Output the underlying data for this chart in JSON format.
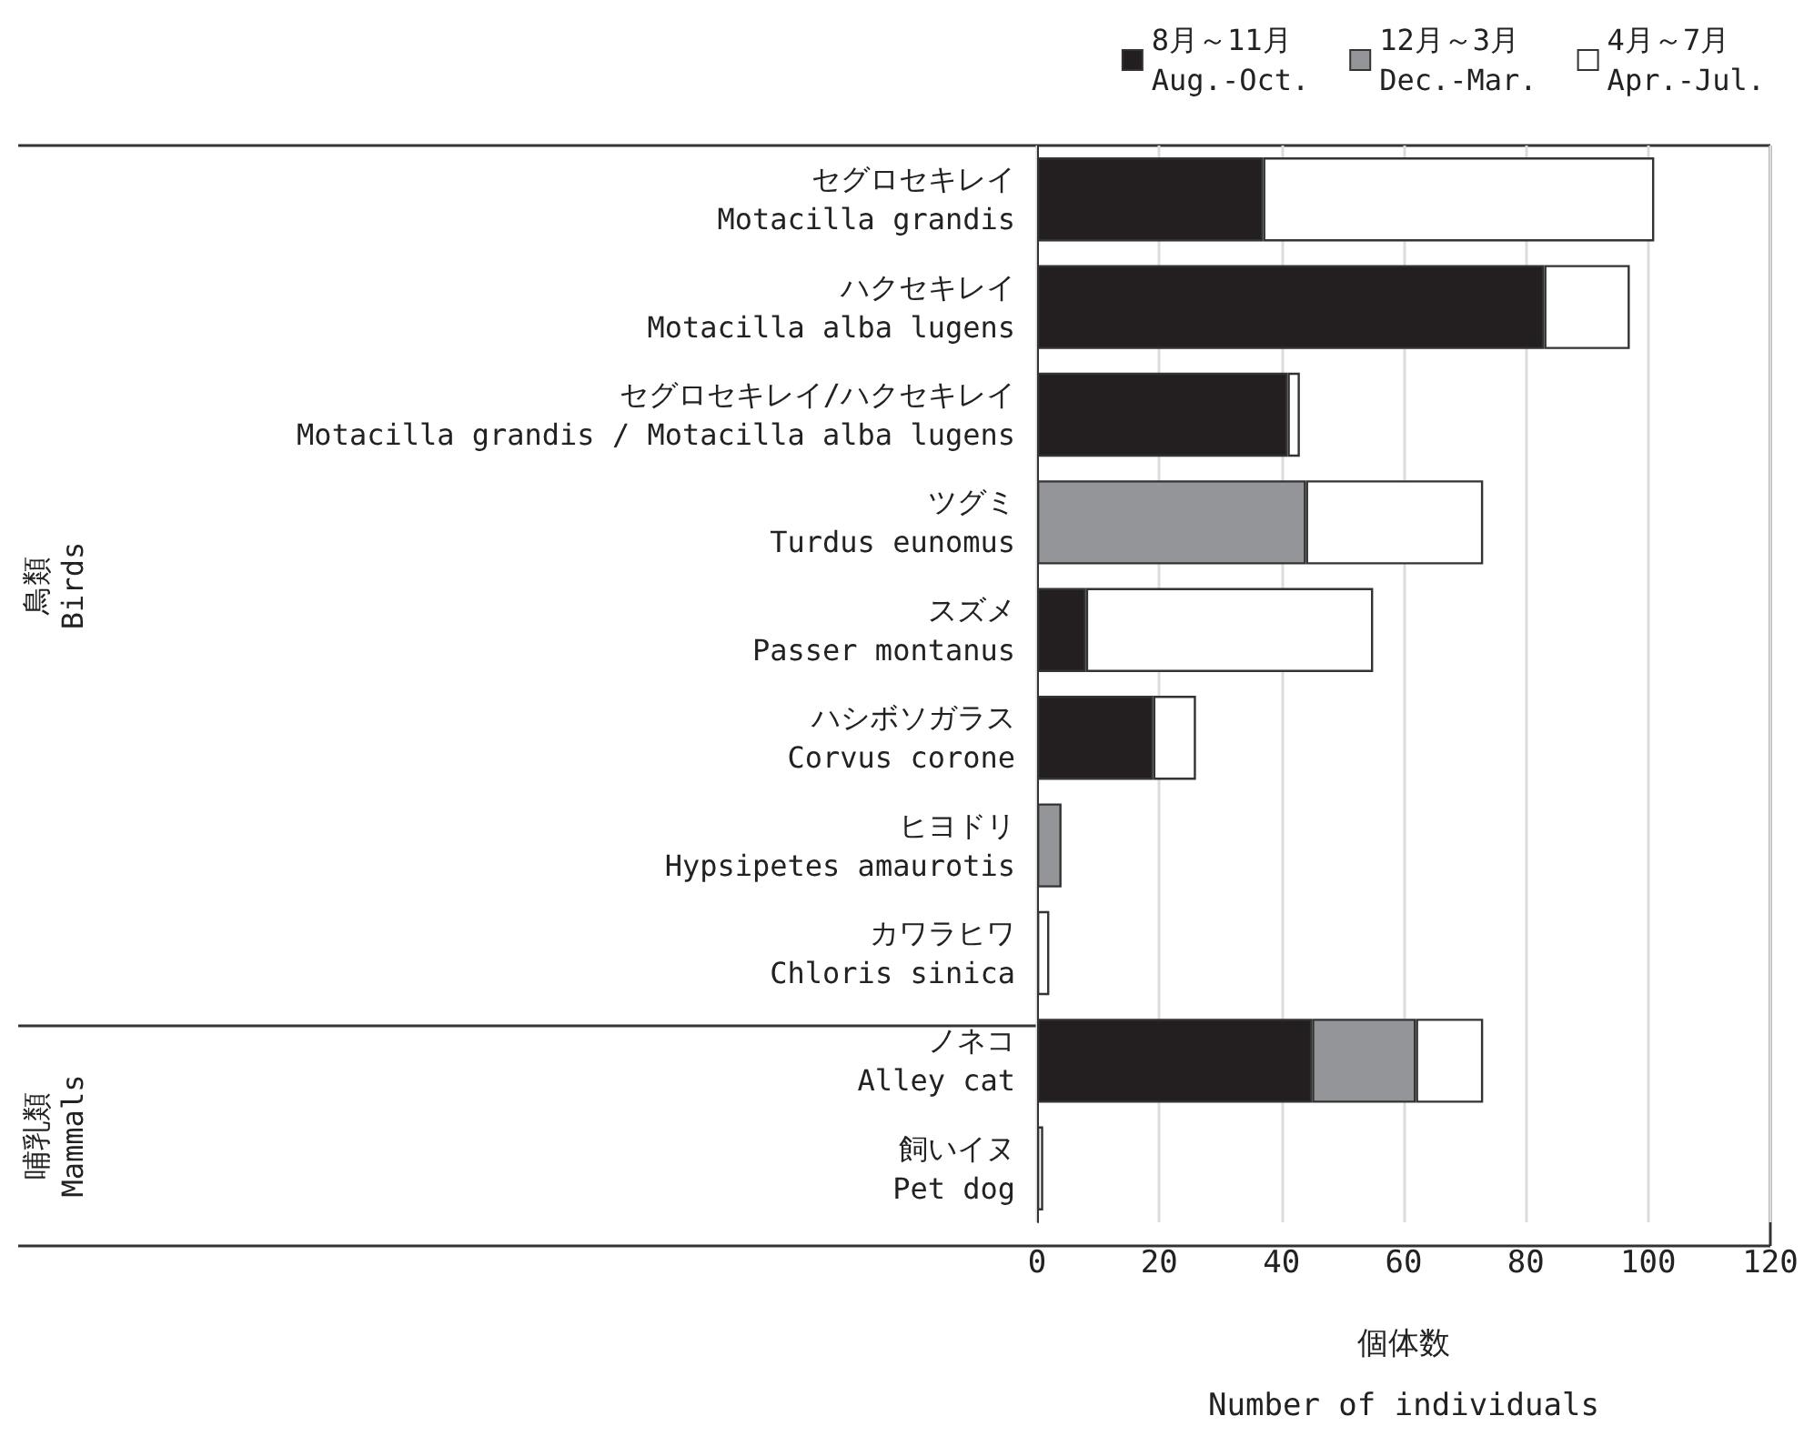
{
  "chart_data": {
    "type": "bar",
    "orientation": "horizontal",
    "stacked": true,
    "categories": [
      "セグロセキレイ\nMotacilla grandis",
      "ハクセキレイ\nMotacilla alba lugens",
      "セグロセキレイ/ハクセキレイ\nMotacilla grandis / Motacilla alba lugens",
      "ツグミ\nTurdus eunomus",
      "スズメ\nPasser montanus",
      "ハシボソガラス\nCorvus corone",
      "ヒヨドリ\nHypsipetes amaurotis",
      "カワラヒワ\nChloris sinica",
      "ノネコ\nAlley cat",
      "飼いイヌ\nPet dog"
    ],
    "series": [
      {
        "name": "8月～11月\nAug.-Oct.",
        "color": "#231f20",
        "values": [
          37,
          83,
          41,
          null,
          8,
          19,
          null,
          null,
          45,
          null
        ]
      },
      {
        "name": "12月～3月\nDec.-Mar.",
        "color": "#939598",
        "values": [
          null,
          null,
          null,
          44,
          null,
          null,
          4,
          null,
          17,
          null
        ]
      },
      {
        "name": "4月～7月\nApr.-Jul.",
        "color": "#ffffff",
        "values": [
          64,
          14,
          2,
          29,
          47,
          7,
          null,
          2,
          11,
          1
        ]
      }
    ],
    "xlabel": "個体数\nNumber of individuals",
    "xlim": [
      0,
      120
    ],
    "xticks": [
      0,
      20,
      40,
      60,
      80,
      100,
      120
    ],
    "grid": "x",
    "legend": "top right",
    "annotations": [
      "鳥類\nBirds",
      "哺乳類\nMammals"
    ]
  }
}
